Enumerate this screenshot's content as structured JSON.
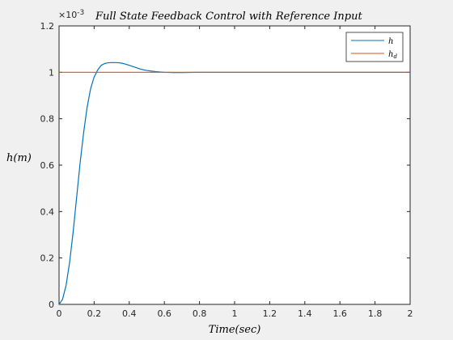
{
  "chart_data": {
    "type": "line",
    "title": "Full State Feedback Control with Reference Input",
    "xlabel": "Time(sec)",
    "ylabel": "h(m)",
    "y_exponent_label": "×10",
    "y_exponent_power": "-3",
    "xlim": [
      0,
      2
    ],
    "ylim": [
      0,
      0.0012
    ],
    "xticks": [
      0,
      0.2,
      0.4,
      0.6,
      0.8,
      1,
      1.2,
      1.4,
      1.6,
      1.8,
      2
    ],
    "xtick_labels": [
      "0",
      "0.2",
      "0.4",
      "0.6",
      "0.8",
      "1",
      "1.2",
      "1.4",
      "1.6",
      "1.8",
      "2"
    ],
    "yticks": [
      0,
      0.0002,
      0.0004,
      0.0006,
      0.0008,
      0.001,
      0.0012
    ],
    "ytick_labels": [
      "0",
      "0.2",
      "0.4",
      "0.6",
      "0.8",
      "1",
      "1.2"
    ],
    "grid": false,
    "legend_position": "top-right",
    "series": [
      {
        "name": "h",
        "color": "#0072bd",
        "x": [
          0,
          0.02,
          0.04,
          0.06,
          0.08,
          0.1,
          0.12,
          0.14,
          0.16,
          0.18,
          0.2,
          0.22,
          0.24,
          0.26,
          0.28,
          0.3,
          0.32,
          0.34,
          0.36,
          0.38,
          0.4,
          0.42,
          0.44,
          0.46,
          0.48,
          0.5,
          0.55,
          0.6,
          0.65,
          0.7,
          0.8,
          0.9,
          1.0,
          1.2,
          1.5,
          2.0
        ],
        "y": [
          0,
          2.2e-05,
          8.2e-05,
          0.00018,
          0.00031,
          0.00046,
          0.00061,
          0.00074,
          0.00085,
          0.00093,
          0.00098,
          0.00101,
          0.00103,
          0.001038,
          0.001041,
          0.001042,
          0.001042,
          0.001041,
          0.001039,
          0.001035,
          0.00103,
          0.001025,
          0.00102,
          0.001015,
          0.001011,
          0.001008,
          0.001003,
          0.001,
          0.000999,
          0.000999,
          0.001,
          0.001,
          0.001,
          0.001,
          0.001,
          0.001
        ]
      },
      {
        "name": "h_d",
        "legend_base": "h",
        "legend_sub": "d",
        "color": "#d95319",
        "x": [
          0,
          2
        ],
        "y": [
          0.001,
          0.001
        ]
      }
    ]
  }
}
